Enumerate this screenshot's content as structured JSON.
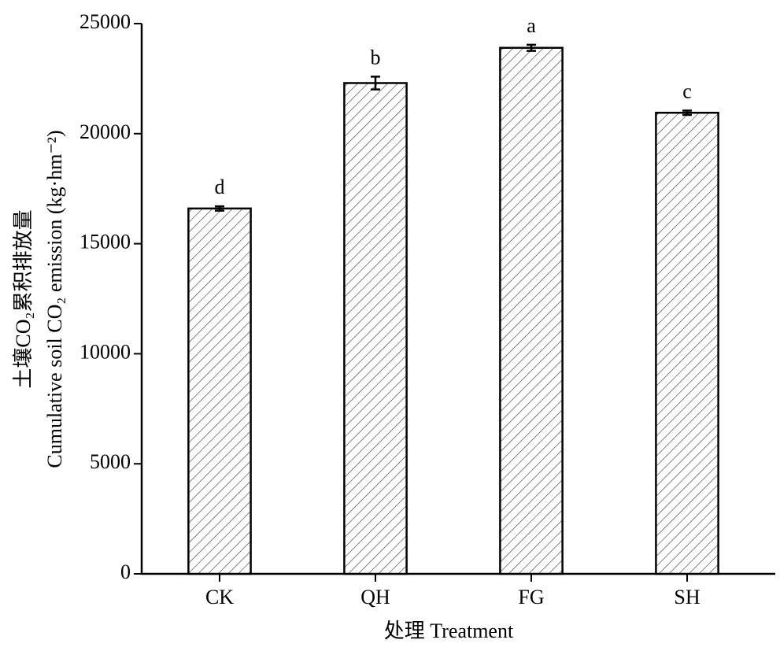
{
  "chart_data": {
    "type": "bar",
    "x_label": "处理 Treatment",
    "y_label": [
      "土壤CO₂累积排放量",
      "Cumulative soil CO₂ emission (kg·hm⁻²)"
    ],
    "categories": [
      "CK",
      "QH",
      "FG",
      "SH"
    ],
    "values": [
      16600,
      22300,
      23900,
      20950
    ],
    "errors": [
      100,
      290,
      140,
      100
    ],
    "annotations": [
      "d",
      "b",
      "a",
      "c"
    ],
    "color": "#000000",
    "pattern": "hatch",
    "ylim": [
      0,
      25000
    ],
    "yticks": [
      0,
      5000,
      10000,
      15000,
      20000,
      25000
    ],
    "grid": false
  }
}
